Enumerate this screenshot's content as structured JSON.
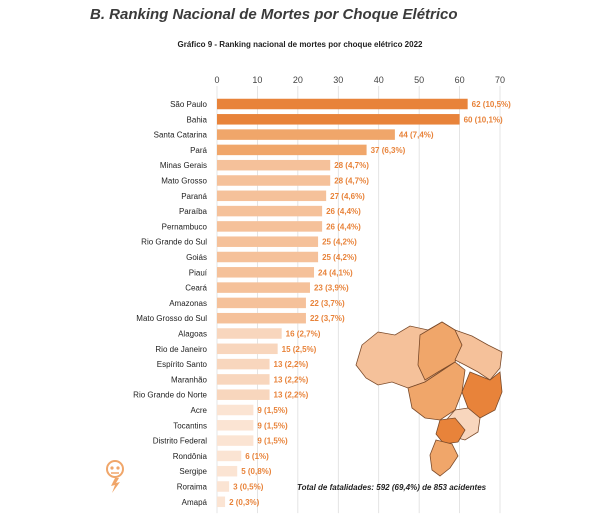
{
  "section_title": "B. Ranking Nacional de Mortes por Choque Elétrico",
  "total_note": "Total de fatalidades: 592 (69,4%) de 853 acidentes",
  "colors": {
    "top": "#e8833a",
    "high": "#f0a66a",
    "mid": "#f5c19a",
    "low": "#f8d6bd",
    "lowest": "#fbe4d3",
    "map_stroke": "#7a4a2a"
  },
  "chart_data": {
    "type": "bar",
    "orientation": "horizontal",
    "title": "Gráfico 9 - Ranking nacional de mortes por choque elétrico 2022",
    "xlim": [
      0,
      70
    ],
    "xticks": [
      "0",
      "10",
      "20",
      "30",
      "40",
      "50",
      "60",
      "70"
    ],
    "grid": true,
    "categories": [
      "São Paulo",
      "Bahia",
      "Santa Catarina",
      "Pará",
      "Minas Gerais",
      "Mato Grosso",
      "Paraná",
      "Paraíba",
      "Pernambuco",
      "Rio Grande do Sul",
      "Goiás",
      "Piauí",
      "Ceará",
      "Amazonas",
      "Mato Grosso do Sul",
      "Alagoas",
      "Rio de Janeiro",
      "Espírito Santo",
      "Maranhão",
      "Rio Grande do Norte",
      "Acre",
      "Tocantins",
      "Distrito Federal",
      "Rondônia",
      "Sergipe",
      "Roraima",
      "Amapá"
    ],
    "values": [
      62,
      60,
      44,
      37,
      28,
      28,
      27,
      26,
      26,
      25,
      25,
      24,
      23,
      22,
      22,
      16,
      15,
      13,
      13,
      13,
      9,
      9,
      9,
      6,
      5,
      3,
      2
    ],
    "labels": [
      "62 (10,5%)",
      "60 (10,1%)",
      "44 (7,4%)",
      "37 (6,3%)",
      "28 (4,7%)",
      "28 (4,7%)",
      "27 (4,6%)",
      "26 (4,4%)",
      "26 (4,4%)",
      "25 (4,2%)",
      "25 (4,2%)",
      "24 (4,1%)",
      "23 (3,9%)",
      "22 (3,7%)",
      "22 (3,7%)",
      "16 (2,7%)",
      "15 (2,5%)",
      "13 (2,2%)",
      "13 (2,2%)",
      "13 (2,2%)",
      "9 (1,5%)",
      "9 (1,5%)",
      "9 (1,5%)",
      "6 (1%)",
      "5 (0,8%)",
      "3 (0,5%)",
      "2 (0,3%)"
    ]
  }
}
